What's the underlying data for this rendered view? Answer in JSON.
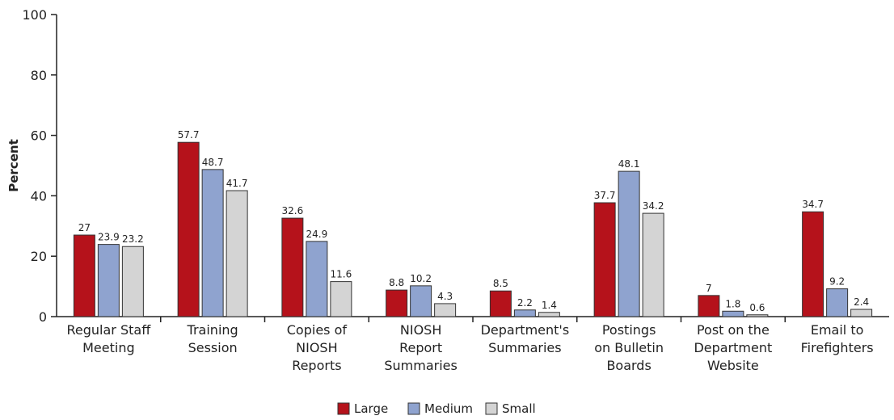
{
  "chart_data": {
    "type": "bar",
    "y_label": "Percent",
    "categories": [
      "Regular Staff\nMeeting",
      "Training\nSession",
      "Copies of\nNIOSH\nReports",
      "NIOSH\nReport\nSummaries",
      "Department's\nSummaries",
      "Postings\non Bulletin\nBoards",
      "Post on the\nDepartment\nWebsite",
      "Email to\nFirefighters"
    ],
    "series": [
      {
        "name": "Large",
        "color": "#b5121b",
        "values": [
          27,
          57.7,
          32.6,
          8.8,
          8.5,
          37.7,
          7,
          34.7
        ]
      },
      {
        "name": "Medium",
        "color": "#8fa3cf",
        "values": [
          23.9,
          48.7,
          24.9,
          10.2,
          2.2,
          48.1,
          1.8,
          9.2
        ]
      },
      {
        "name": "Small",
        "color": "#d4d4d4",
        "values": [
          23.2,
          41.7,
          11.6,
          4.3,
          1.4,
          34.2,
          0.6,
          2.4
        ]
      }
    ],
    "ylim": [
      0,
      100
    ],
    "yticks": [
      0,
      20,
      40,
      60,
      80,
      100
    ],
    "legend": "bottom"
  }
}
